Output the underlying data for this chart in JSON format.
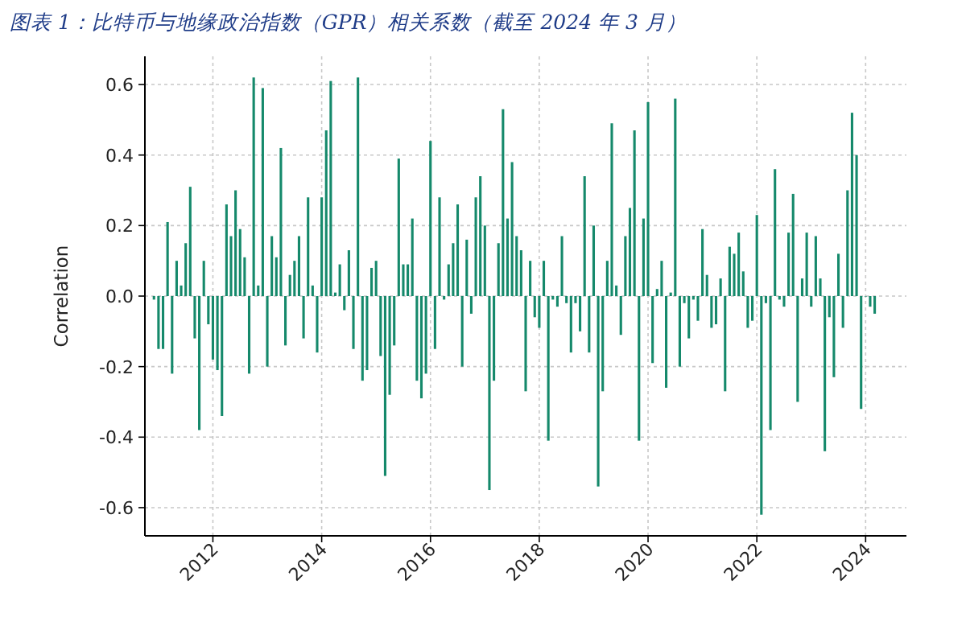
{
  "chart_data": {
    "type": "bar",
    "title": "图表 1：比特币与地缘政治指数（GPR）相关系数（截至 2024 年 3 月）",
    "ylabel": "Correlation",
    "color": "#15896b",
    "grid": true,
    "xlim": [
      "2010-10",
      "2024-10"
    ],
    "xticks": [
      "2012",
      "2014",
      "2016",
      "2018",
      "2020",
      "2022",
      "2024"
    ],
    "ylim": [
      -0.68,
      0.68
    ],
    "yticks": [
      {
        "value": -0.6,
        "label": "-0.6"
      },
      {
        "value": -0.4,
        "label": "-0.4"
      },
      {
        "value": -0.2,
        "label": "-0.2"
      },
      {
        "value": 0,
        "label": "0.0"
      },
      {
        "value": 0.2,
        "label": "0.2"
      },
      {
        "value": 0.4,
        "label": "0.4"
      },
      {
        "value": 0.6,
        "label": "0.6"
      }
    ],
    "x": [
      "2010-12",
      "2011-01",
      "2011-02",
      "2011-03",
      "2011-04",
      "2011-05",
      "2011-06",
      "2011-07",
      "2011-08",
      "2011-09",
      "2011-10",
      "2011-11",
      "2011-12",
      "2012-01",
      "2012-02",
      "2012-03",
      "2012-04",
      "2012-05",
      "2012-06",
      "2012-07",
      "2012-08",
      "2012-09",
      "2012-10",
      "2012-11",
      "2012-12",
      "2013-01",
      "2013-02",
      "2013-03",
      "2013-04",
      "2013-05",
      "2013-06",
      "2013-07",
      "2013-08",
      "2013-09",
      "2013-10",
      "2013-11",
      "2013-12",
      "2014-01",
      "2014-02",
      "2014-03",
      "2014-04",
      "2014-05",
      "2014-06",
      "2014-07",
      "2014-08",
      "2014-09",
      "2014-10",
      "2014-11",
      "2014-12",
      "2015-01",
      "2015-02",
      "2015-03",
      "2015-04",
      "2015-05",
      "2015-06",
      "2015-07",
      "2015-08",
      "2015-09",
      "2015-10",
      "2015-11",
      "2015-12",
      "2016-01",
      "2016-02",
      "2016-03",
      "2016-04",
      "2016-05",
      "2016-06",
      "2016-07",
      "2016-08",
      "2016-09",
      "2016-10",
      "2016-11",
      "2016-12",
      "2017-01",
      "2017-02",
      "2017-03",
      "2017-04",
      "2017-05",
      "2017-06",
      "2017-07",
      "2017-08",
      "2017-09",
      "2017-10",
      "2017-11",
      "2017-12",
      "2018-01",
      "2018-02",
      "2018-03",
      "2018-04",
      "2018-05",
      "2018-06",
      "2018-07",
      "2018-08",
      "2018-09",
      "2018-10",
      "2018-11",
      "2018-12",
      "2019-01",
      "2019-02",
      "2019-03",
      "2019-04",
      "2019-05",
      "2019-06",
      "2019-07",
      "2019-08",
      "2019-09",
      "2019-10",
      "2019-11",
      "2019-12",
      "2020-01",
      "2020-02",
      "2020-03",
      "2020-04",
      "2020-05",
      "2020-06",
      "2020-07",
      "2020-08",
      "2020-09",
      "2020-10",
      "2020-11",
      "2020-12",
      "2021-01",
      "2021-02",
      "2021-03",
      "2021-04",
      "2021-05",
      "2021-06",
      "2021-07",
      "2021-08",
      "2021-09",
      "2021-10",
      "2021-11",
      "2021-12",
      "2022-01",
      "2022-02",
      "2022-03",
      "2022-04",
      "2022-05",
      "2022-06",
      "2022-07",
      "2022-08",
      "2022-09",
      "2022-10",
      "2022-11",
      "2022-12",
      "2023-01",
      "2023-02",
      "2023-03",
      "2023-04",
      "2023-05",
      "2023-06",
      "2023-07",
      "2023-08",
      "2023-09",
      "2023-10",
      "2023-11",
      "2023-12",
      "2024-01",
      "2024-02",
      "2024-03"
    ],
    "values": [
      -0.01,
      -0.15,
      -0.15,
      0.21,
      -0.22,
      0.1,
      0.03,
      0.15,
      0.31,
      -0.12,
      -0.38,
      0.1,
      -0.08,
      -0.18,
      -0.21,
      -0.34,
      0.26,
      0.17,
      0.3,
      0.19,
      0.11,
      -0.22,
      0.62,
      0.03,
      0.59,
      -0.2,
      0.17,
      0.11,
      0.42,
      -0.14,
      0.06,
      0.1,
      0.17,
      -0.12,
      0.28,
      0.03,
      -0.16,
      0.28,
      0.47,
      0.61,
      0.01,
      0.09,
      -0.04,
      0.13,
      -0.15,
      0.62,
      -0.24,
      -0.21,
      0.08,
      0.1,
      -0.17,
      -0.51,
      -0.28,
      -0.14,
      0.39,
      0.09,
      0.09,
      0.22,
      -0.24,
      -0.29,
      -0.22,
      0.44,
      -0.15,
      0.28,
      -0.01,
      0.09,
      0.15,
      0.26,
      -0.2,
      0.16,
      -0.05,
      0.28,
      0.34,
      0.2,
      -0.55,
      -0.24,
      0.15,
      0.53,
      0.22,
      0.38,
      0.17,
      0.13,
      -0.27,
      0.1,
      -0.06,
      -0.09,
      0.1,
      -0.41,
      -0.01,
      -0.03,
      0.17,
      -0.02,
      -0.16,
      -0.02,
      -0.1,
      0.34,
      -0.16,
      0.2,
      -0.54,
      -0.27,
      0.1,
      0.49,
      0.03,
      -0.11,
      0.17,
      0.25,
      0.47,
      -0.41,
      0.22,
      0.55,
      -0.19,
      0.02,
      0.1,
      -0.26,
      0.01,
      0.56,
      -0.2,
      -0.02,
      -0.12,
      -0.01,
      -0.07,
      0.19,
      0.06,
      -0.09,
      -0.08,
      0.05,
      -0.27,
      0.14,
      0.12,
      0.18,
      0.07,
      -0.09,
      -0.07,
      0.23,
      -0.62,
      -0.02,
      -0.38,
      0.36,
      -0.01,
      -0.03,
      0.18,
      0.29,
      -0.3,
      0.05,
      0.18,
      -0.03,
      0.17,
      0.05,
      -0.44,
      -0.06,
      -0.23,
      0.12,
      -0.09,
      0.3,
      0.52,
      0.4,
      -0.32,
      0.0,
      -0.03,
      -0.05
    ]
  }
}
